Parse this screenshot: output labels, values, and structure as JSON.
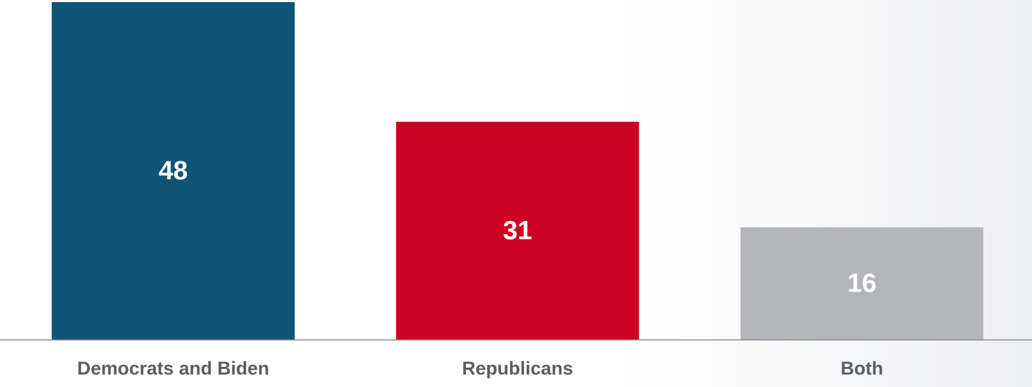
{
  "chart_data": {
    "type": "bar",
    "categories": [
      "Democrats and Biden",
      "Republicans",
      "Both"
    ],
    "values": [
      48,
      31,
      16
    ],
    "colors": [
      "#0e5475",
      "#cc0423",
      "#b3b5b8"
    ]
  }
}
